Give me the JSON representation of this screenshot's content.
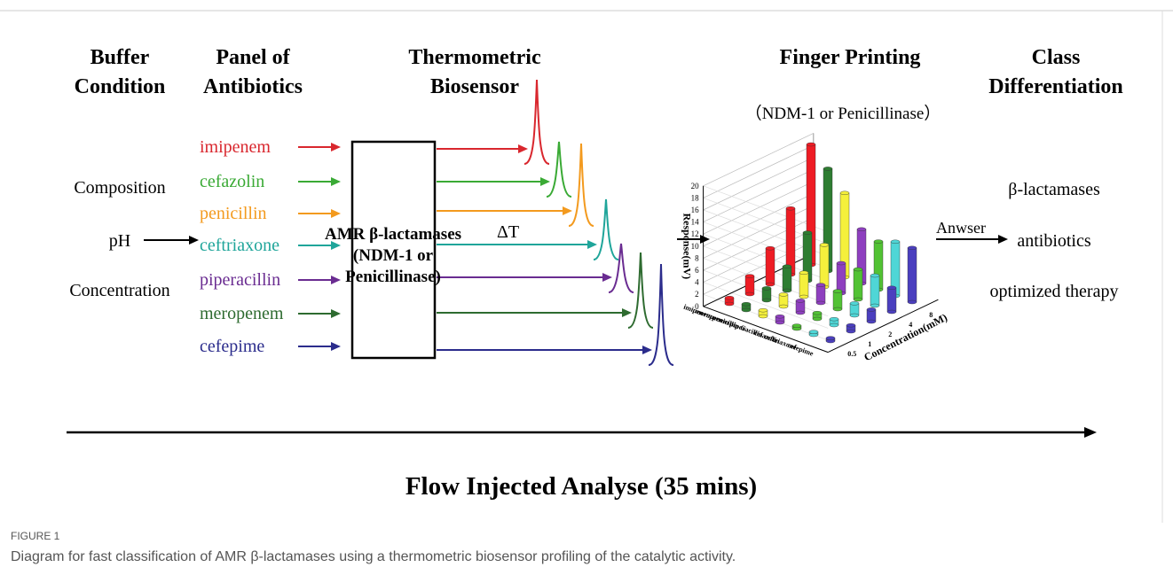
{
  "headers": [
    [
      "Buffer",
      "Condition"
    ],
    [
      "Panel of",
      "Antibiotics"
    ],
    [
      "Thermometric",
      "Biosensor"
    ],
    [
      "Finger Printing"
    ],
    [
      "Class",
      "Differentiation"
    ]
  ],
  "buffer_conditions": [
    "Composition",
    "pH",
    "Concentration"
  ],
  "antibiotics": [
    {
      "name": "imipenem",
      "color": "#d9272e"
    },
    {
      "name": "cefazolin",
      "color": "#3aaa35"
    },
    {
      "name": "penicillin",
      "color": "#f39a1e"
    },
    {
      "name": "ceftriaxone",
      "color": "#1fa59a"
    },
    {
      "name": "piperacillin",
      "color": "#6a2c91"
    },
    {
      "name": "meropenem",
      "color": "#2e6b30"
    },
    {
      "name": "cefepime",
      "color": "#2b2c8c"
    }
  ],
  "biosensor_box": [
    "AMR β-lactamases",
    "(NDM-1 or",
    "Penicillinase)"
  ],
  "delta_t": "ΔT",
  "fingerprint_chart": {
    "subtitle": "（NDM-1 or Penicillinase）",
    "y_label": "Response(mV)",
    "x_label": "Concentration(mM)",
    "ylim": [
      0,
      20
    ],
    "yticks": [
      0,
      2,
      4,
      6,
      8,
      10,
      12,
      14,
      16,
      18,
      20
    ],
    "concentrations": [
      0.5,
      1,
      2,
      4,
      8
    ],
    "series": [
      {
        "name": "imipenem",
        "color": "#ee1c24",
        "values": [
          1,
          3,
          6,
          11,
          20
        ]
      },
      {
        "name": "meropenem",
        "color": "#2e7d32",
        "values": [
          1,
          2,
          4,
          8,
          17
        ]
      },
      {
        "name": "penicillin G",
        "color": "#f5f03c",
        "values": [
          1,
          2,
          4,
          7,
          14
        ]
      },
      {
        "name": "piperacillin",
        "color": "#8e3fbf",
        "values": [
          1,
          2,
          3,
          5,
          9
        ]
      },
      {
        "name": "cefazolin",
        "color": "#52c234",
        "values": [
          0.5,
          1,
          3,
          5,
          8
        ]
      },
      {
        "name": "ceftriaxone",
        "color": "#4fd6d6",
        "values": [
          0.5,
          1,
          2,
          5,
          9
        ]
      },
      {
        "name": "cefepime",
        "color": "#4b3fbf",
        "values": [
          0.5,
          1,
          2,
          4,
          9
        ]
      }
    ]
  },
  "answer_label": "Anwser",
  "classes": [
    "β-lactamases",
    "antibiotics",
    "optimized therapy"
  ],
  "flow_label": "Flow Injected Analyse (35 mins)",
  "figure_label": "FIGURE 1",
  "caption": "Diagram for fast classification of AMR β-lactamases using a thermometric biosensor profiling of the catalytic activity."
}
